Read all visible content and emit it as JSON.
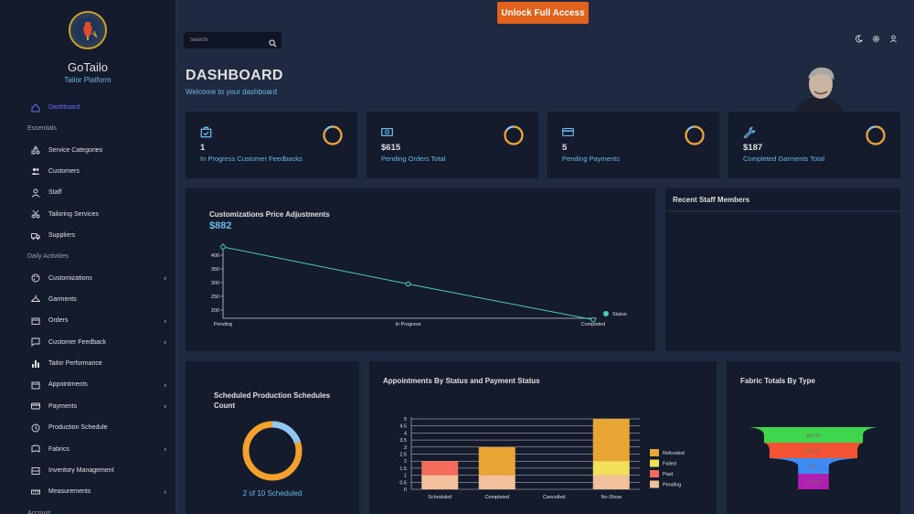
{
  "brand": {
    "name": "GoTailo",
    "subtitle": "Tailor Platform"
  },
  "topbar": {
    "unlock_label": "Unlock Full Access",
    "search_placeholder": "Search"
  },
  "header": {
    "title": "DASHBOARD",
    "subtitle": "Welcome to your dashboard"
  },
  "nav": [
    {
      "type": "item",
      "label": "Dashboard",
      "icon": "home-icon",
      "active": true
    },
    {
      "type": "section",
      "label": "Essentials"
    },
    {
      "type": "item",
      "label": "Service Categories",
      "icon": "category-icon"
    },
    {
      "type": "item",
      "label": "Customers",
      "icon": "people-icon"
    },
    {
      "type": "item",
      "label": "Staff",
      "icon": "staff-icon"
    },
    {
      "type": "item",
      "label": "Tailoring Services",
      "icon": "scissors-icon"
    },
    {
      "type": "item",
      "label": "Suppliers",
      "icon": "truck-icon"
    },
    {
      "type": "section",
      "label": "Daily Activities"
    },
    {
      "type": "item",
      "label": "Customizations",
      "icon": "palette-icon",
      "chevron": true
    },
    {
      "type": "item",
      "label": "Garments",
      "icon": "hanger-icon"
    },
    {
      "type": "item",
      "label": "Orders",
      "icon": "orders-icon",
      "chevron": true
    },
    {
      "type": "item",
      "label": "Customer Feedback",
      "icon": "feedback-icon",
      "chevron": true
    },
    {
      "type": "item",
      "label": "Tailor Performance",
      "icon": "bar-chart-icon"
    },
    {
      "type": "item",
      "label": "Appointments",
      "icon": "calendar-icon",
      "chevron": true
    },
    {
      "type": "item",
      "label": "Payments",
      "icon": "card-icon",
      "chevron": true
    },
    {
      "type": "item",
      "label": "Production Schedule",
      "icon": "clock-icon"
    },
    {
      "type": "item",
      "label": "Fabrics",
      "icon": "fabric-icon",
      "chevron": true
    },
    {
      "type": "item",
      "label": "Inventory Management",
      "icon": "inventory-icon"
    },
    {
      "type": "item",
      "label": "Measurements",
      "icon": "ruler-icon",
      "chevron": true
    },
    {
      "type": "section",
      "label": "Account"
    }
  ],
  "stats": [
    {
      "value": "1",
      "label": "In Progress Customer Feedbacks",
      "icon": "feedback-box-icon",
      "progress": 0.85
    },
    {
      "value": "$615",
      "label": "Pending Orders Total",
      "icon": "money-icon",
      "progress": 0.85
    },
    {
      "value": "5",
      "label": "Pending Payments",
      "icon": "card-icon",
      "progress": 0.85
    },
    {
      "value": "$187",
      "label": "Completed Garments Total",
      "icon": "wrench-icon",
      "progress": 0.85
    }
  ],
  "price_panel": {
    "title": "Customizations Price Adjustments",
    "total": "$882"
  },
  "staff_panel": {
    "title": "Recent Staff Members"
  },
  "schedule_panel": {
    "title": "Scheduled Production Schedules Count",
    "caption": "2 of 10 Scheduled",
    "progress": 0.2
  },
  "appointments_panel": {
    "title": "Appointments By Status and Payment Status"
  },
  "fabric_panel": {
    "title": "Fabric Totals By Type"
  },
  "colors": {
    "accent": "#e0621b",
    "ring_orange": "#f3a12a",
    "ring_blue": "#90c6f2",
    "line": "#4cceac"
  },
  "chart_data": [
    {
      "type": "line",
      "categories": [
        "Pending",
        "In Progress",
        "Completed"
      ],
      "series": [
        {
          "name": "Status",
          "values": [
            430,
            295,
            165
          ]
        }
      ],
      "yticks": [
        "400",
        "350",
        "300",
        "250",
        "200"
      ],
      "ylim": [
        170,
        430
      ]
    },
    {
      "type": "bar",
      "categories": [
        "Scheduled",
        "Completed",
        "Cancelled",
        "No-Show"
      ],
      "series": [
        {
          "name": "Pending",
          "values": [
            1,
            1,
            0,
            1
          ],
          "color": "#f2c09a"
        },
        {
          "name": "Paid",
          "values": [
            1,
            0,
            0,
            0
          ],
          "color": "#f26b5b"
        },
        {
          "name": "Failed",
          "values": [
            0,
            0,
            0,
            1
          ],
          "color": "#f2e05a"
        },
        {
          "name": "Refunded",
          "values": [
            0,
            2,
            0,
            3
          ],
          "color": "#e8a534"
        }
      ],
      "yticks": [
        "5",
        "4.5",
        "4",
        "3.5",
        "3",
        "2.5",
        "2",
        "1.5",
        "1",
        "0.5",
        "0"
      ],
      "ylim": [
        0,
        5
      ],
      "legend": "right"
    },
    {
      "type": "funnel",
      "labels": [
        "$52.40",
        "$40.49",
        "$36",
        "$12.58"
      ],
      "values": [
        52.4,
        40.49,
        36,
        12.58
      ],
      "colors": [
        "#3dd64c",
        "#f25433",
        "#3d8af2",
        "#b01fb0"
      ]
    }
  ]
}
